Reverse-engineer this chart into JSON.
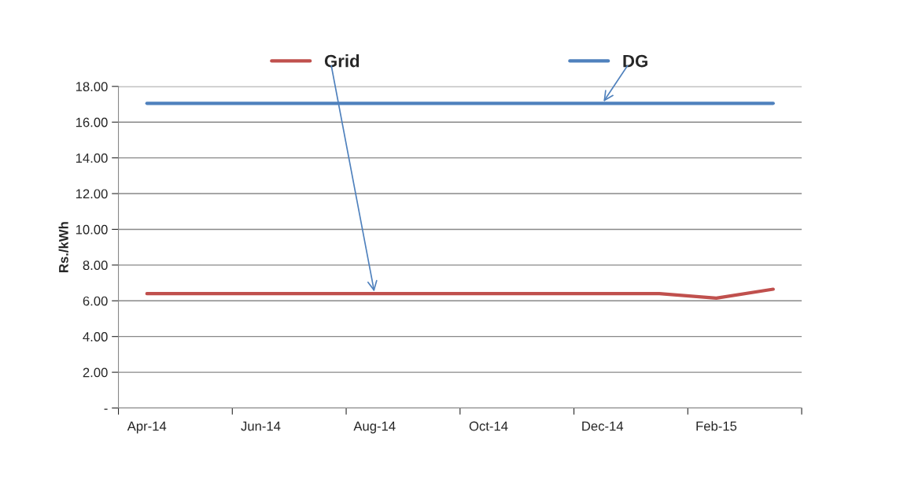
{
  "chart_data": {
    "type": "line",
    "ylabel": "Rs./kWh",
    "categories": [
      "Apr-14",
      null,
      "Jun-14",
      null,
      "Aug-14",
      null,
      "Oct-14",
      null,
      "Dec-14",
      null,
      "Feb-15",
      null
    ],
    "series": [
      {
        "name": "Grid",
        "color": "#c0504d",
        "values": [
          6.4,
          6.4,
          6.4,
          6.4,
          6.4,
          6.4,
          6.4,
          6.4,
          6.4,
          6.4,
          6.15,
          6.65
        ]
      },
      {
        "name": "DG",
        "color": "#4f81bd",
        "values": [
          17.05,
          17.05,
          17.05,
          17.05,
          17.05,
          17.05,
          17.05,
          17.05,
          17.05,
          17.05,
          17.05,
          17.05
        ]
      }
    ],
    "ylim": [
      0,
      18
    ],
    "yticks": [
      {
        "value": 0,
        "label": "-"
      },
      {
        "value": 2,
        "label": "2.00"
      },
      {
        "value": 4,
        "label": "4.00"
      },
      {
        "value": 6,
        "label": "6.00"
      },
      {
        "value": 8,
        "label": "8.00"
      },
      {
        "value": 10,
        "label": "10.00"
      },
      {
        "value": 12,
        "label": "12.00"
      },
      {
        "value": 14,
        "label": "14.00"
      },
      {
        "value": 16,
        "label": "16.00"
      },
      {
        "value": 18,
        "label": "18.00"
      }
    ],
    "grid": "y",
    "legend": "top",
    "marker": "none",
    "line_style": "solid"
  }
}
